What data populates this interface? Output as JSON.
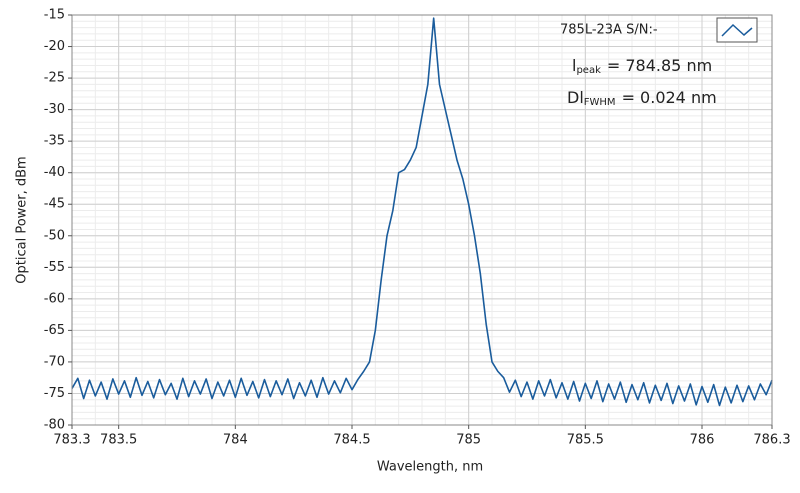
{
  "chart_data": {
    "type": "line",
    "x": [
      783.3,
      783.325,
      783.35,
      783.375,
      783.4,
      783.425,
      783.45,
      783.475,
      783.5,
      783.525,
      783.55,
      783.575,
      783.6,
      783.625,
      783.65,
      783.675,
      783.7,
      783.725,
      783.75,
      783.775,
      783.8,
      783.825,
      783.85,
      783.875,
      783.9,
      783.925,
      783.95,
      783.975,
      784,
      784.025,
      784.05,
      784.075,
      784.1,
      784.125,
      784.15,
      784.175,
      784.2,
      784.225,
      784.25,
      784.275,
      784.3,
      784.325,
      784.35,
      784.375,
      784.4,
      784.425,
      784.45,
      784.475,
      784.5,
      784.525,
      784.55,
      784.575,
      784.6,
      784.625,
      784.65,
      784.675,
      784.7,
      784.725,
      784.75,
      784.775,
      784.8,
      784.825,
      784.85,
      784.875,
      784.9,
      784.925,
      784.95,
      784.975,
      785,
      785.025,
      785.05,
      785.075,
      785.1,
      785.125,
      785.15,
      785.175,
      785.2,
      785.225,
      785.25,
      785.275,
      785.3,
      785.325,
      785.35,
      785.375,
      785.4,
      785.425,
      785.45,
      785.475,
      785.5,
      785.525,
      785.55,
      785.575,
      785.6,
      785.625,
      785.65,
      785.675,
      785.7,
      785.725,
      785.75,
      785.775,
      785.8,
      785.825,
      785.85,
      785.875,
      785.9,
      785.925,
      785.95,
      785.975,
      786,
      786.025,
      786.05,
      786.075,
      786.1,
      786.125,
      786.15,
      786.175,
      786.2,
      786.225,
      786.25,
      786.275,
      786.3
    ],
    "series": [
      {
        "name": "785L-23A S/N:-",
        "color": "#1a5c9c",
        "values": [
          -74.2,
          -72.6,
          -75.8,
          -72.9,
          -75.4,
          -73.2,
          -75.9,
          -72.7,
          -75.1,
          -73.0,
          -75.6,
          -72.5,
          -75.3,
          -73.1,
          -75.7,
          -72.8,
          -75.2,
          -73.4,
          -75.9,
          -72.6,
          -75.5,
          -73.0,
          -75.1,
          -72.7,
          -75.8,
          -73.2,
          -75.4,
          -72.9,
          -75.6,
          -72.6,
          -75.3,
          -73.1,
          -75.7,
          -72.8,
          -75.5,
          -73.0,
          -75.2,
          -72.7,
          -75.8,
          -73.3,
          -75.4,
          -72.9,
          -75.6,
          -72.5,
          -75.1,
          -73.0,
          -74.9,
          -72.6,
          -74.4,
          -72.8,
          -71.5,
          -70,
          -65,
          -57,
          -50,
          -46,
          -40,
          -39.5,
          -38,
          -36,
          -31,
          -26,
          -15.5,
          -26,
          -30,
          -34,
          -38,
          -41,
          -45,
          -50,
          -56,
          -64,
          -70,
          -71.5,
          -72.5,
          -74.8,
          -72.9,
          -75.5,
          -73.2,
          -75.9,
          -73.0,
          -75.4,
          -72.8,
          -75.7,
          -73.3,
          -75.9,
          -73.1,
          -76.2,
          -73.4,
          -75.8,
          -73.0,
          -76.3,
          -73.5,
          -75.9,
          -73.2,
          -76.4,
          -73.6,
          -76.0,
          -73.3,
          -76.5,
          -73.7,
          -76.1,
          -73.4,
          -76.6,
          -73.8,
          -76.2,
          -73.5,
          -76.8,
          -73.9,
          -76.4,
          -73.6,
          -76.9,
          -74.0,
          -76.5,
          -73.7,
          -76.3,
          -73.8,
          -76.0,
          -73.5,
          -75.2,
          -72.9
        ]
      }
    ],
    "xlabel": "Wavelength, nm",
    "ylabel": "Optical Power, dBm",
    "xlim": [
      783.3,
      786.3
    ],
    "xticks": [
      783.3,
      783.5,
      784,
      784.5,
      785,
      785.5,
      786,
      786.3
    ],
    "ylim": [
      -80,
      -15
    ],
    "yticks": [
      -80,
      -75,
      -70,
      -65,
      -60,
      -55,
      -50,
      -45,
      -40,
      -35,
      -30,
      -25,
      -20,
      -15
    ],
    "grid": true,
    "legend": "top-right",
    "annotations": [
      {
        "main": "l",
        "sub": "peak",
        "text": "= 784.85 nm"
      },
      {
        "main": "Dl",
        "sub": "FWHM",
        "text": "= 0.024 nm"
      }
    ]
  }
}
